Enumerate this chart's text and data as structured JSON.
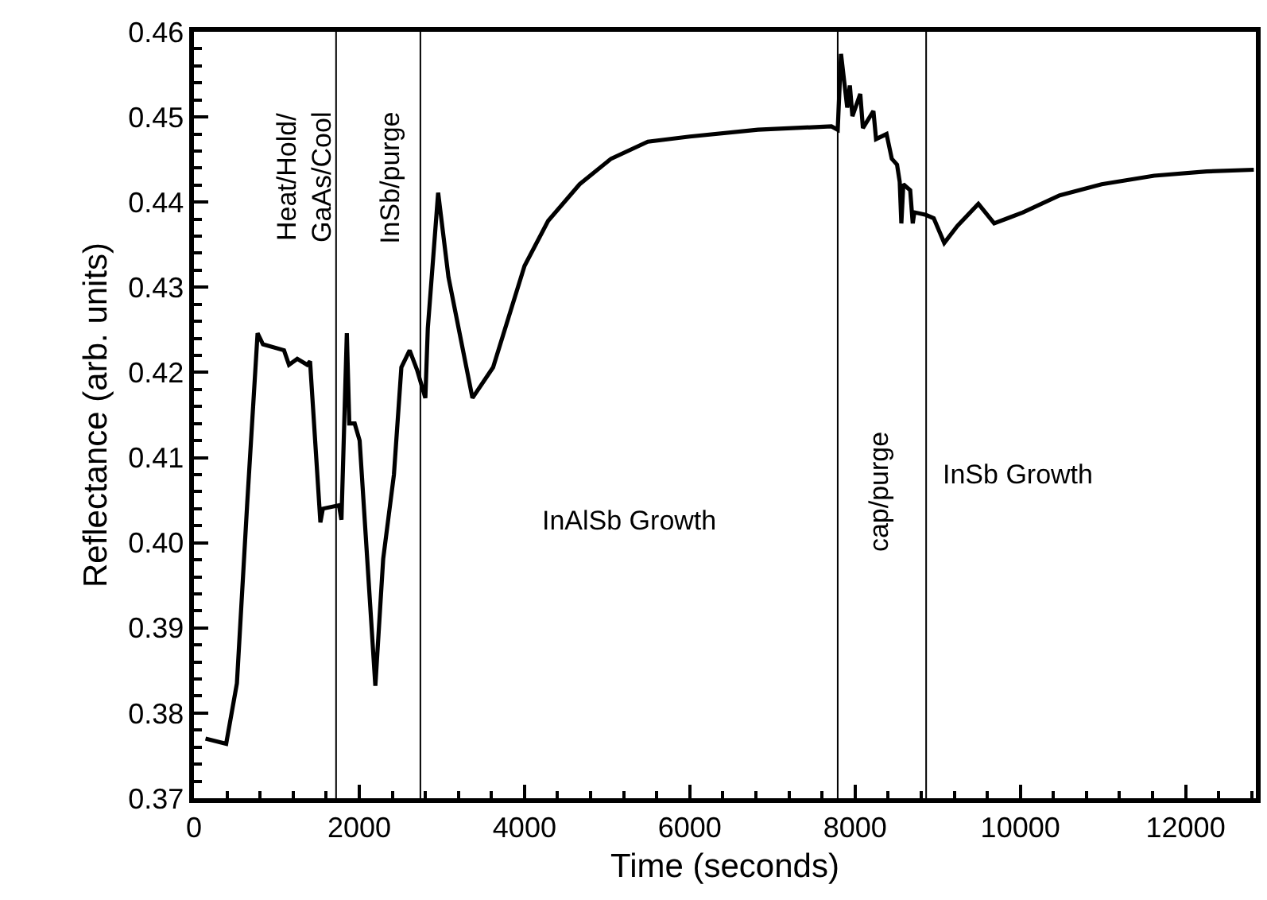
{
  "chart_data": {
    "type": "line",
    "xlabel": "Time (seconds)",
    "ylabel": "Reflectance (arb. units)",
    "xlim": [
      0,
      12850
    ],
    "xticks": [
      0,
      2000,
      4000,
      6000,
      8000,
      10000,
      12000
    ],
    "ylim": [
      0.37,
      0.46
    ],
    "yticks": [
      {
        "value": 0.37,
        "label": "0.37"
      },
      {
        "value": 0.38,
        "label": "0.38"
      },
      {
        "value": 0.39,
        "label": "0.39"
      },
      {
        "value": 0.4,
        "label": "0.40"
      },
      {
        "value": 0.41,
        "label": "0.41"
      },
      {
        "value": 0.42,
        "label": "0.42"
      },
      {
        "value": 0.43,
        "label": "0.43"
      },
      {
        "value": 0.44,
        "label": "0.44"
      },
      {
        "value": 0.45,
        "label": "0.45"
      },
      {
        "value": 0.46,
        "label": "0.46"
      }
    ],
    "grid": false,
    "marker": "none",
    "line_style": "solid",
    "series": [
      {
        "color": "#000000",
        "x": [
          140,
          390,
          520,
          645,
          770,
          835,
          1090,
          1150,
          1250,
          1370,
          1405,
          1530,
          1560,
          1755,
          1785,
          1850,
          1880,
          1945,
          2005,
          2195,
          2290,
          2420,
          2510,
          2610,
          2700,
          2800,
          2830,
          2955,
          3080,
          3370,
          3620,
          4000,
          4286,
          4667,
          5048,
          5492,
          6000,
          6825,
          7714,
          7790,
          7830,
          7905,
          7937,
          7968,
          8063,
          8095,
          8222,
          8254,
          8381,
          8444,
          8508,
          8540,
          8560,
          8584,
          8667,
          8698,
          8717,
          8857,
          8952,
          9079,
          9238,
          9492,
          9683,
          10032,
          10476,
          10984,
          11619,
          12254,
          12825
        ],
        "values": [
          0.377,
          0.3764,
          0.3835,
          0.4047,
          0.4246,
          0.4233,
          0.4226,
          0.4209,
          0.4216,
          0.4209,
          0.4213,
          0.4024,
          0.404,
          0.4044,
          0.4027,
          0.4246,
          0.414,
          0.414,
          0.412,
          0.3832,
          0.3981,
          0.408,
          0.4206,
          0.4226,
          0.4203,
          0.417,
          0.4252,
          0.4411,
          0.4312,
          0.417,
          0.4206,
          0.4325,
          0.4378,
          0.4421,
          0.4451,
          0.4471,
          0.4477,
          0.4485,
          0.4489,
          0.4485,
          0.4574,
          0.4511,
          0.4537,
          0.4501,
          0.4527,
          0.4487,
          0.4507,
          0.4474,
          0.448,
          0.4451,
          0.4444,
          0.4424,
          0.4375,
          0.4421,
          0.4414,
          0.4375,
          0.4388,
          0.4385,
          0.4381,
          0.4352,
          0.4372,
          0.4398,
          0.4375,
          0.4388,
          0.4408,
          0.4421,
          0.4431,
          0.4436,
          0.4438
        ]
      }
    ],
    "ref_lines": [
      {
        "axis": "x",
        "value": 1720,
        "color": "#000000"
      },
      {
        "axis": "x",
        "value": 2740,
        "color": "#000000"
      },
      {
        "axis": "x",
        "value": 7790,
        "color": "#000000"
      },
      {
        "axis": "x",
        "value": 8860,
        "color": "#000000"
      }
    ],
    "annotations": [
      "Heat/Hold/\nGaAs/Cool",
      "InSb/purge",
      "InAlSb Growth",
      "cap/purge",
      "InSb Growth"
    ]
  }
}
